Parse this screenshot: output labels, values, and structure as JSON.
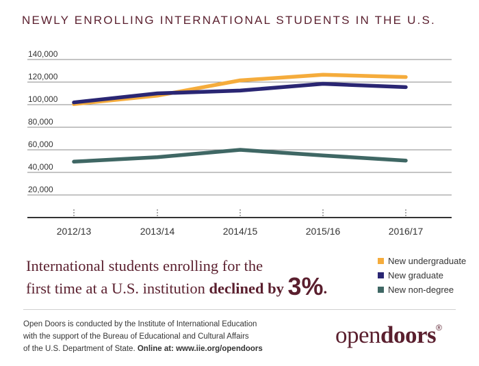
{
  "header": {
    "title": "NEWLY ENROLLING INTERNATIONAL STUDENTS IN THE U.S."
  },
  "headline": {
    "line1": "International students enrolling for the",
    "line2_prefix": "first time at a U.S. institution ",
    "emphasis": "declined by ",
    "percent": "3%",
    "suffix": "."
  },
  "footer": {
    "line1": "Open Doors is conducted by the Institute of International Education",
    "line2": "with the support of the Bureau of Educational and Cultural Affairs",
    "line3_prefix": "of the U.S. Department of State. ",
    "line3_bold": "Online at: www.iie.org/opendoors"
  },
  "logo": {
    "light": "open",
    "bold": "doors",
    "mark": "®"
  },
  "colors": {
    "undergrad": "#f5ac3c",
    "graduate": "#2a2673",
    "nondegree": "#3f6764",
    "brand": "#5a1f2e"
  },
  "chart_data": {
    "type": "line",
    "categories": [
      "2012/13",
      "2013/14",
      "2014/15",
      "2015/16",
      "2016/17"
    ],
    "y_ticks": [
      "20,000",
      "40,000",
      "60,000",
      "80,000",
      "100,000",
      "120,000",
      "140,000"
    ],
    "ylim": [
      0,
      140000
    ],
    "grid": true,
    "legend_position": "bottom-right",
    "series": [
      {
        "name": "New undergraduate",
        "color": "#f5ac3c",
        "values": [
          100500,
          108000,
          121500,
          126500,
          124500
        ]
      },
      {
        "name": "New graduate",
        "color": "#2a2673",
        "values": [
          102000,
          110000,
          112500,
          118500,
          115500
        ]
      },
      {
        "name": "New non-degree",
        "color": "#3f6764",
        "values": [
          49500,
          53500,
          60000,
          55000,
          50500
        ]
      }
    ]
  }
}
